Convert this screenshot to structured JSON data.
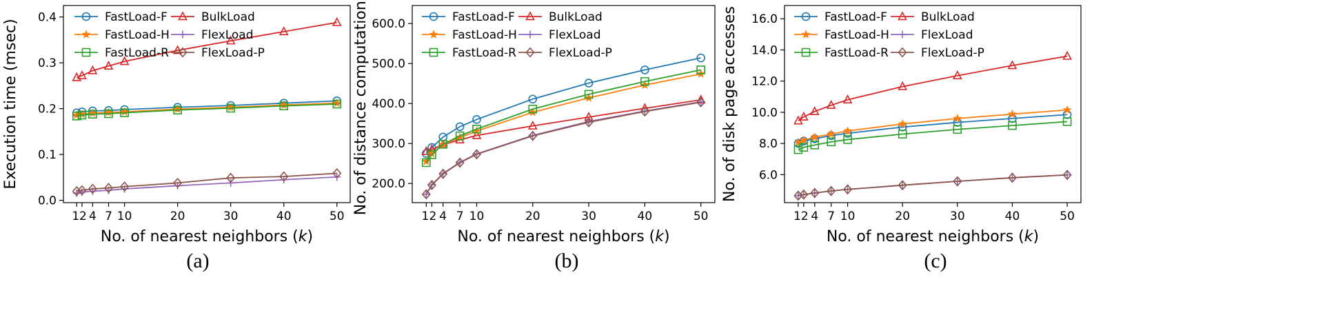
{
  "colors": {
    "FastLoad-F": "#1f77b4",
    "FastLoad-H": "#ff7f0e",
    "FastLoad-R": "#2ca02c",
    "BulkLoad": "#d62728",
    "FlexLoad": "#9467bd",
    "FlexLoad-P": "#8c564b"
  },
  "markers": {
    "FastLoad-F": "circle",
    "FastLoad-H": "star",
    "FastLoad-R": "square",
    "BulkLoad": "triangle",
    "FlexLoad": "plus",
    "FlexLoad-P": "diamond"
  },
  "chart_data": [
    {
      "type": "line",
      "caption": "(a)",
      "xlabel": "No. of nearest neighbors (",
      "xlabel_var": "k",
      "xlabel_close": ")",
      "ylabel": "Execution time (msec)",
      "x": [
        1,
        2,
        4,
        7,
        10,
        20,
        30,
        40,
        50
      ],
      "xticks": [
        1,
        2,
        4,
        7,
        10,
        20,
        30,
        40,
        50
      ],
      "xtick_labels": [
        "1",
        "2",
        "4",
        "7",
        "10",
        "20",
        "30",
        "40",
        "50"
      ],
      "xlim": [
        -1.5,
        52.5
      ],
      "ylim": [
        -0.005,
        0.425
      ],
      "yticks": [
        0.0,
        0.1,
        0.2,
        0.3,
        0.4
      ],
      "ytick_labels": [
        "0.0",
        "0.1",
        "0.2",
        "0.3",
        "0.4"
      ],
      "legend_location": "top-left",
      "series": [
        {
          "name": "FastLoad-F",
          "values": [
            0.191,
            0.193,
            0.195,
            0.196,
            0.198,
            0.203,
            0.207,
            0.212,
            0.217
          ]
        },
        {
          "name": "BulkLoad",
          "values": [
            0.268,
            0.272,
            0.283,
            0.293,
            0.303,
            0.327,
            0.348,
            0.368,
            0.388
          ]
        },
        {
          "name": "FastLoad-H",
          "values": [
            0.186,
            0.188,
            0.19,
            0.192,
            0.193,
            0.199,
            0.203,
            0.208,
            0.212
          ]
        },
        {
          "name": "FlexLoad",
          "values": [
            0.016,
            0.018,
            0.02,
            0.022,
            0.025,
            0.032,
            0.038,
            0.045,
            0.051
          ]
        },
        {
          "name": "FastLoad-R",
          "values": [
            0.184,
            0.186,
            0.188,
            0.189,
            0.191,
            0.197,
            0.201,
            0.206,
            0.21
          ]
        },
        {
          "name": "FlexLoad-P",
          "values": [
            0.02,
            0.022,
            0.025,
            0.027,
            0.03,
            0.038,
            0.049,
            0.052,
            0.059
          ]
        }
      ]
    },
    {
      "type": "line",
      "caption": "(b)",
      "xlabel": "No. of nearest neighbors (",
      "xlabel_var": "k",
      "xlabel_close": ")",
      "ylabel": "No. of distance computations",
      "x": [
        1,
        2,
        4,
        7,
        10,
        20,
        30,
        40,
        50
      ],
      "xticks": [
        1,
        2,
        4,
        7,
        10,
        20,
        30,
        40,
        50
      ],
      "xtick_labels": [
        "1",
        "2",
        "4",
        "7",
        "10",
        "20",
        "30",
        "40",
        "50"
      ],
      "xlim": [
        -1.5,
        52.5
      ],
      "ylim": [
        152,
        645
      ],
      "yticks": [
        200,
        300,
        400,
        500,
        600
      ],
      "ytick_labels": [
        "200.0",
        "300.0",
        "400.0",
        "500.0",
        "600.0"
      ],
      "legend_location": "top-left",
      "series": [
        {
          "name": "FastLoad-F",
          "values": [
            275,
            290,
            316,
            342,
            360,
            411,
            451,
            484,
            514
          ]
        },
        {
          "name": "BulkLoad",
          "values": [
            280,
            285,
            297,
            309,
            320,
            344,
            366,
            388,
            409
          ]
        },
        {
          "name": "FastLoad-H",
          "values": [
            255,
            275,
            297,
            315,
            331,
            378,
            414,
            446,
            474
          ]
        },
        {
          "name": "FlexLoad",
          "values": [
            173,
            197,
            225,
            253,
            274,
            320,
            355,
            381,
            404
          ]
        },
        {
          "name": "FastLoad-R",
          "values": [
            252,
            272,
            298,
            319,
            336,
            386,
            423,
            455,
            484
          ]
        },
        {
          "name": "FlexLoad-P",
          "values": [
            173,
            196,
            224,
            252,
            273,
            319,
            353,
            380,
            403
          ]
        }
      ]
    },
    {
      "type": "line",
      "caption": "(c)",
      "xlabel": "No. of nearest neighbors (",
      "xlabel_var": "k",
      "xlabel_close": ")",
      "ylabel": "No. of disk page accesses",
      "x": [
        1,
        2,
        4,
        7,
        10,
        20,
        30,
        40,
        50
      ],
      "xticks": [
        1,
        2,
        4,
        7,
        10,
        20,
        30,
        40,
        50
      ],
      "xtick_labels": [
        "1",
        "2",
        "4",
        "7",
        "10",
        "20",
        "30",
        "40",
        "50"
      ],
      "xlim": [
        -1.5,
        52.5
      ],
      "ylim": [
        4.2,
        16.85
      ],
      "yticks": [
        6,
        8,
        10,
        12,
        14,
        16
      ],
      "ytick_labels": [
        "6.0",
        "8.0",
        "10.0",
        "12.0",
        "14.0",
        "16.0"
      ],
      "legend_location": "top-left",
      "series": [
        {
          "name": "FastLoad-F",
          "values": [
            8.0,
            8.15,
            8.3,
            8.5,
            8.65,
            9.05,
            9.35,
            9.6,
            9.85
          ]
        },
        {
          "name": "BulkLoad",
          "values": [
            9.45,
            9.7,
            10.05,
            10.45,
            10.8,
            11.65,
            12.35,
            13.0,
            13.6
          ]
        },
        {
          "name": "FastLoad-H",
          "values": [
            8.05,
            8.2,
            8.4,
            8.6,
            8.8,
            9.25,
            9.6,
            9.88,
            10.15
          ]
        },
        {
          "name": "FlexLoad",
          "values": [
            4.65,
            4.72,
            4.82,
            4.95,
            5.05,
            5.32,
            5.57,
            5.8,
            5.98
          ]
        },
        {
          "name": "FastLoad-R",
          "values": [
            7.6,
            7.75,
            7.9,
            8.1,
            8.25,
            8.6,
            8.9,
            9.15,
            9.4
          ]
        },
        {
          "name": "FlexLoad-P",
          "values": [
            4.65,
            4.72,
            4.82,
            4.95,
            5.05,
            5.32,
            5.57,
            5.8,
            5.98
          ]
        }
      ]
    }
  ]
}
